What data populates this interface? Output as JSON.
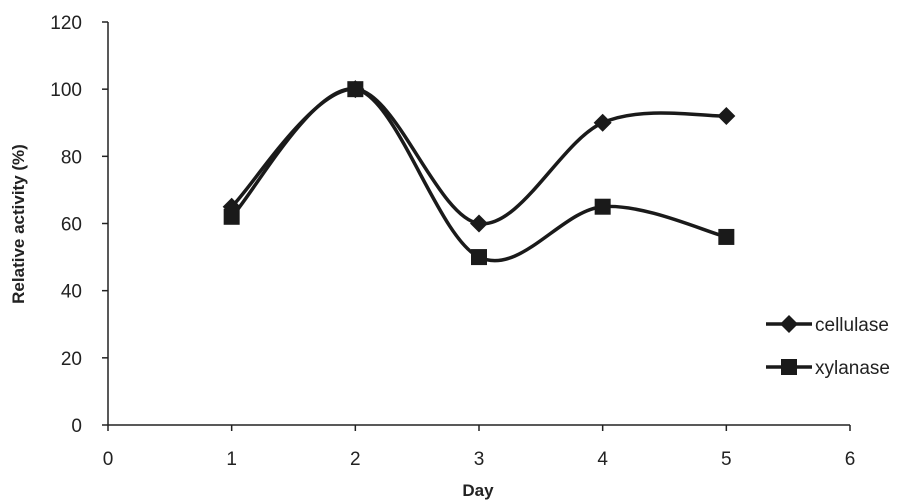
{
  "chart_data": {
    "type": "line",
    "xlabel": "Day",
    "ylabel": "Relative activity (%)",
    "xlim": [
      0,
      6
    ],
    "ylim": [
      0,
      120
    ],
    "x_ticks": [
      "0",
      "1",
      "2",
      "3",
      "4",
      "5",
      "6"
    ],
    "y_ticks": [
      "0",
      "20",
      "40",
      "60",
      "80",
      "100",
      "120"
    ],
    "x": [
      1,
      2,
      3,
      4,
      5
    ],
    "series": [
      {
        "name": "cellulase",
        "marker": "diamond",
        "values": [
          65,
          100,
          60,
          90,
          92
        ]
      },
      {
        "name": "xylanase",
        "marker": "square",
        "values": [
          62,
          100,
          50,
          65,
          56
        ]
      }
    ],
    "grid": false,
    "smooth": true,
    "legend_position": "right",
    "line_color": "#1a1a1a"
  }
}
